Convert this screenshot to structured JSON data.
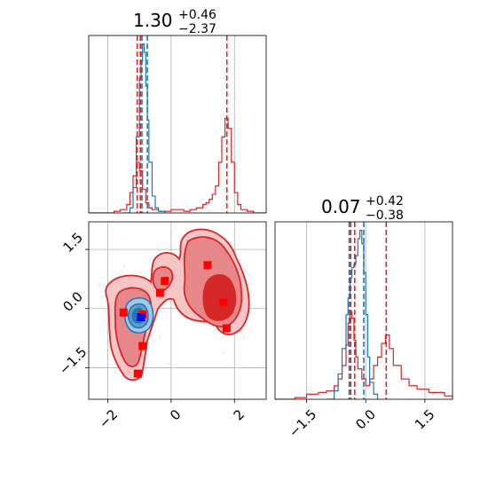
{
  "chart_data": {
    "type": "corner-plot",
    "grid": true,
    "colors": {
      "red": "#d62728",
      "blue": "#1f77b4",
      "marker_red": "#ff0000",
      "marker_blue": "#0000ff",
      "grid": "#b0b0b0"
    },
    "panels": {
      "top_left": {
        "type": "histogram",
        "title": {
          "value": "1.30",
          "upper": "+0.46",
          "lower": "−2.37"
        },
        "xlim": [
          -2.6,
          3.0
        ],
        "red_vlines": [
          -1.07,
          -0.97,
          1.76
        ],
        "blue_vlines": [
          -0.92,
          -0.75
        ],
        "series": [
          {
            "color": "red",
            "x": [
              -2.6,
              -2.2,
              -1.8,
              -1.6,
              -1.4,
              -1.3,
              -1.2,
              -1.1,
              -1.0,
              -0.9,
              -0.8,
              -0.7,
              -0.6,
              -0.4,
              -0.2,
              0.0,
              0.2,
              0.4,
              0.6,
              0.8,
              1.0,
              1.1,
              1.2,
              1.3,
              1.4,
              1.5,
              1.6,
              1.7,
              1.8,
              1.9,
              2.0,
              2.1,
              2.2,
              2.4,
              2.6,
              3.0
            ],
            "y": [
              0,
              0,
              0.01,
              0.02,
              0.05,
              0.12,
              0.22,
              0.3,
              0.25,
              0.14,
              0.06,
              0.03,
              0.02,
              0.01,
              0.01,
              0.02,
              0.02,
              0.01,
              0.02,
              0.03,
              0.05,
              0.06,
              0.08,
              0.11,
              0.16,
              0.3,
              0.45,
              0.56,
              0.5,
              0.3,
              0.12,
              0.05,
              0.02,
              0.01,
              0,
              0
            ]
          },
          {
            "color": "blue",
            "x": [
              -1.5,
              -1.3,
              -1.2,
              -1.1,
              -1.0,
              -0.95,
              -0.9,
              -0.85,
              -0.8,
              -0.75,
              -0.7,
              -0.6,
              -0.5,
              -0.4,
              -0.2
            ],
            "y": [
              0,
              0.03,
              0.15,
              0.45,
              0.8,
              0.9,
              1.0,
              0.95,
              0.75,
              0.55,
              0.3,
              0.1,
              0.03,
              0.01,
              0
            ]
          }
        ]
      },
      "bottom_left": {
        "type": "2d-contour",
        "xlim": [
          -2.6,
          3.0
        ],
        "ylim": [
          -2.3,
          2.2
        ],
        "xticks": [
          "−2",
          "0",
          "2"
        ],
        "xtick_values": [
          -2,
          0,
          2
        ],
        "yticks": [
          "1.5",
          "0.0",
          "−1.5"
        ],
        "ytick_values": [
          1.5,
          0.0,
          -1.5
        ],
        "red_points": [
          {
            "x": 1.15,
            "y": 1.1
          },
          {
            "x": -0.2,
            "y": 0.7
          },
          {
            "x": -0.35,
            "y": 0.4
          },
          {
            "x": -1.5,
            "y": -0.1
          },
          {
            "x": -0.9,
            "y": -0.15
          },
          {
            "x": 1.65,
            "y": 0.15
          },
          {
            "x": 1.75,
            "y": -0.5
          },
          {
            "x": -0.9,
            "y": -0.95
          },
          {
            "x": -1.05,
            "y": -1.65
          }
        ],
        "blue_points": [
          {
            "x": -0.95,
            "y": -0.22
          }
        ]
      },
      "bottom_right": {
        "type": "histogram",
        "title": {
          "value": "0.07",
          "upper": "+0.42",
          "lower": "−0.38"
        },
        "xlim": [
          -2.3,
          2.2
        ],
        "xticks": [
          "−1.5",
          "0.0",
          "1.5"
        ],
        "xtick_values": [
          -1.5,
          0.0,
          1.5
        ],
        "red_vlines": [
          -0.38,
          -0.28,
          0.52
        ],
        "blue_vlines": [
          -0.42,
          -0.05
        ],
        "series": [
          {
            "color": "red",
            "x": [
              -2.3,
              -1.8,
              -1.5,
              -1.2,
              -1.0,
              -0.8,
              -0.7,
              -0.6,
              -0.5,
              -0.45,
              -0.4,
              -0.35,
              -0.3,
              -0.25,
              -0.2,
              -0.1,
              0.0,
              0.1,
              0.2,
              0.3,
              0.4,
              0.5,
              0.6,
              0.7,
              0.9,
              1.1,
              1.3,
              1.6,
              2.0,
              2.2
            ],
            "y": [
              0,
              0.01,
              0.03,
              0.04,
              0.05,
              0.08,
              0.12,
              0.2,
              0.32,
              0.45,
              0.52,
              0.48,
              0.35,
              0.25,
              0.18,
              0.12,
              0.08,
              0.12,
              0.2,
              0.25,
              0.33,
              0.38,
              0.3,
              0.2,
              0.12,
              0.08,
              0.06,
              0.04,
              0.02,
              0
            ]
          },
          {
            "color": "blue",
            "x": [
              -1.0,
              -0.8,
              -0.7,
              -0.6,
              -0.5,
              -0.45,
              -0.4,
              -0.35,
              -0.3,
              -0.25,
              -0.2,
              -0.15,
              -0.1,
              -0.05,
              0.0,
              0.05,
              0.1,
              0.2,
              0.3
            ],
            "y": [
              0,
              0.05,
              0.15,
              0.3,
              0.5,
              0.6,
              0.72,
              0.78,
              0.8,
              0.85,
              0.95,
              1.0,
              0.92,
              0.75,
              0.5,
              0.25,
              0.1,
              0.03,
              0
            ]
          }
        ]
      }
    }
  }
}
